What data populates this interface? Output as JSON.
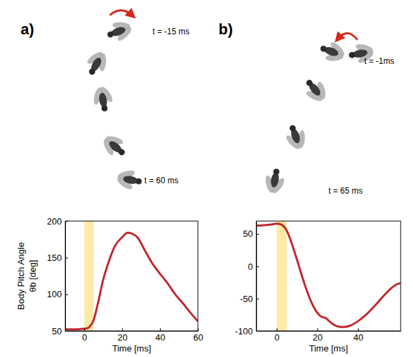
{
  "chart_data": [
    {
      "type": "line",
      "panel": "a)",
      "annotations": [
        "t = -15 ms",
        "t = 60 ms"
      ],
      "xlabel": "Time [ms]",
      "ylabel": [
        "Body Pitch Angle",
        "θb [deg]"
      ],
      "xlim": [
        -10,
        60
      ],
      "xticks": [
        0,
        20,
        40,
        60
      ],
      "ylim": [
        50,
        200
      ],
      "yticks": [
        50,
        100,
        150,
        200
      ],
      "shaded_range": [
        0,
        5
      ],
      "x": [
        -10,
        -5,
        0,
        2,
        3,
        5,
        7,
        10,
        13,
        16,
        20,
        23,
        25,
        28,
        32,
        36,
        40,
        44,
        48,
        52,
        56,
        60
      ],
      "series": [
        {
          "color": "#c0272d",
          "values": [
            52,
            52,
            53,
            54,
            56,
            65,
            85,
            120,
            145,
            165,
            178,
            184,
            183,
            178,
            160,
            142,
            128,
            115,
            100,
            88,
            75,
            63
          ]
        }
      ]
    },
    {
      "type": "line",
      "panel": "b)",
      "annotations": [
        "t = -1ms",
        "t = 65 ms"
      ],
      "xlabel": "Time [ms]",
      "xlim": [
        -10,
        61
      ],
      "xticks": [
        0,
        20,
        40
      ],
      "ylim": [
        -100,
        70
      ],
      "yticks": [
        -100,
        -50,
        0,
        50
      ],
      "shaded_range": [
        0,
        5
      ],
      "x": [
        -10,
        -5,
        -2,
        0,
        2,
        5,
        8,
        11,
        14,
        17,
        20,
        22,
        24,
        27,
        30,
        33,
        36,
        40,
        44,
        48,
        52,
        56,
        59,
        61
      ],
      "series": [
        {
          "color": "#c0272d",
          "values": [
            63,
            64,
            65,
            66,
            65,
            55,
            30,
            0,
            -30,
            -55,
            -72,
            -78,
            -80,
            -88,
            -93,
            -94,
            -92,
            -85,
            -75,
            -62,
            -48,
            -35,
            -28,
            -26
          ]
        }
      ]
    }
  ]
}
